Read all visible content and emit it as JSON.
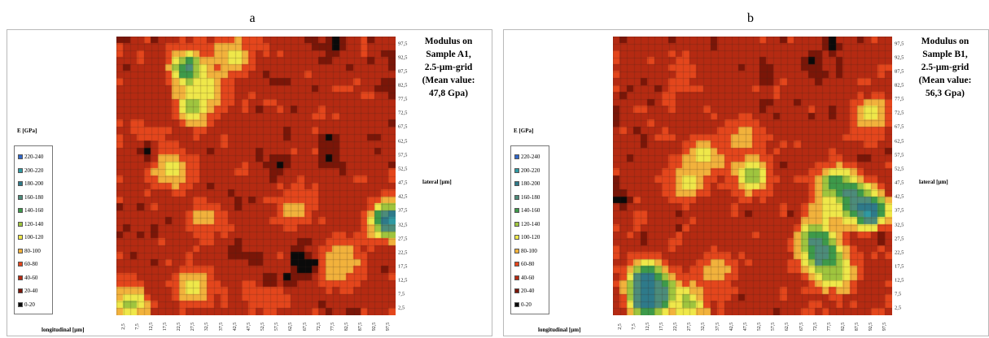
{
  "chart_data": [
    {
      "panel": "a",
      "type": "heatmap",
      "title_lines": [
        "Modulus on",
        "Sample A1,",
        "2.5-μm-grid",
        "(Mean value:",
        "47,8 Gpa)"
      ],
      "xlabel": "longitudinal [μm]",
      "ylabel": "lateral [μm]",
      "legend_title": "E [GPa]",
      "x_ticks": [
        "2,5",
        "7,5",
        "12,5",
        "17,5",
        "22,5",
        "27,5",
        "32,5",
        "37,5",
        "42,5",
        "47,5",
        "52,5",
        "57,5",
        "62,5",
        "67,5",
        "72,5",
        "77,5",
        "82,5",
        "87,5",
        "92,5",
        "97,5"
      ],
      "y_ticks": [
        "97,5",
        "92,5",
        "87,5",
        "82,5",
        "77,5",
        "72,5",
        "67,5",
        "62,5",
        "57,5",
        "52,5",
        "47,5",
        "42,5",
        "37,5",
        "32,5",
        "27,5",
        "22,5",
        "17,5",
        "12,5",
        "7,5",
        "2,5"
      ],
      "xlim": [
        0,
        100
      ],
      "ylim": [
        0,
        100
      ],
      "mean_value": "47,8 Gpa",
      "grid_step_um": 2.5,
      "hotspots": [
        {
          "x": 28,
          "y": 75,
          "level": 6
        },
        {
          "x": 26,
          "y": 88,
          "level": 8
        },
        {
          "x": 33,
          "y": 82,
          "level": 5
        },
        {
          "x": 42,
          "y": 93,
          "level": 5
        },
        {
          "x": 98,
          "y": 34,
          "level": 10
        },
        {
          "x": 27,
          "y": 10,
          "level": 5
        },
        {
          "x": 55,
          "y": 9,
          "level": 4
        },
        {
          "x": 78,
          "y": 17,
          "level": 5
        },
        {
          "x": 82,
          "y": 20,
          "level": 4
        },
        {
          "x": 64,
          "y": 38,
          "level": 4
        },
        {
          "x": 31,
          "y": 35,
          "level": 4
        },
        {
          "x": 11,
          "y": 64,
          "level": 3
        },
        {
          "x": 5,
          "y": 4,
          "level": 6
        },
        {
          "x": 19,
          "y": 52,
          "level": 5
        }
      ],
      "lows": [
        {
          "x": 65,
          "y": 20,
          "level": 0
        },
        {
          "x": 70,
          "y": 18,
          "level": 0
        },
        {
          "x": 68,
          "y": 16,
          "level": 0
        },
        {
          "x": 62,
          "y": 13,
          "level": 0
        },
        {
          "x": 11,
          "y": 59,
          "level": 0
        },
        {
          "x": 77,
          "y": 57,
          "level": 0
        },
        {
          "x": 77,
          "y": 63,
          "level": 0
        },
        {
          "x": 78,
          "y": 97,
          "level": 0
        },
        {
          "x": 60,
          "y": 55,
          "level": 0
        },
        {
          "x": 55,
          "y": 12,
          "level": 0
        }
      ]
    },
    {
      "panel": "b",
      "type": "heatmap",
      "title_lines": [
        "Modulus on",
        "Sample B1,",
        "2.5-μm-grid",
        "(Mean value:",
        "56,3 Gpa)"
      ],
      "xlabel": "longitudinal [μm]",
      "ylabel": "lateral [μm]",
      "legend_title": "E [GPa]",
      "x_ticks": [
        "2,5",
        "7,5",
        "12,5",
        "17,5",
        "22,5",
        "27,5",
        "32,5",
        "37,5",
        "42,5",
        "47,5",
        "52,5",
        "57,5",
        "62,5",
        "67,5",
        "72,5",
        "77,5",
        "82,5",
        "87,5",
        "92,5",
        "97,5"
      ],
      "y_ticks": [
        "97,5",
        "92,5",
        "87,5",
        "82,5",
        "77,5",
        "72,5",
        "67,5",
        "62,5",
        "57,5",
        "52,5",
        "47,5",
        "42,5",
        "37,5",
        "32,5",
        "27,5",
        "22,5",
        "17,5",
        "12,5",
        "7,5",
        "2,5"
      ],
      "xlim": [
        0,
        100
      ],
      "ylim": [
        0,
        100
      ],
      "mean_value": "56,3 Gpa",
      "grid_step_um": 2.5,
      "hotspots": [
        {
          "x": 12,
          "y": 12,
          "level": 10
        },
        {
          "x": 17,
          "y": 8,
          "level": 8
        },
        {
          "x": 12,
          "y": 5,
          "level": 9
        },
        {
          "x": 27,
          "y": 4,
          "level": 6
        },
        {
          "x": 85,
          "y": 42,
          "level": 9
        },
        {
          "x": 92,
          "y": 37,
          "level": 10
        },
        {
          "x": 80,
          "y": 46,
          "level": 8
        },
        {
          "x": 73,
          "y": 27,
          "level": 8
        },
        {
          "x": 76,
          "y": 20,
          "level": 9
        },
        {
          "x": 80,
          "y": 15,
          "level": 6
        },
        {
          "x": 50,
          "y": 50,
          "level": 6
        },
        {
          "x": 27,
          "y": 48,
          "level": 5
        },
        {
          "x": 33,
          "y": 57,
          "level": 5
        },
        {
          "x": 47,
          "y": 64,
          "level": 4
        },
        {
          "x": 93,
          "y": 72,
          "level": 5
        },
        {
          "x": 25,
          "y": 85,
          "level": 3
        },
        {
          "x": 78,
          "y": 38,
          "level": 5
        },
        {
          "x": 37,
          "y": 16,
          "level": 4
        }
      ],
      "lows": [
        {
          "x": 78,
          "y": 97,
          "level": 0
        },
        {
          "x": 72,
          "y": 92,
          "level": 0
        },
        {
          "x": 2,
          "y": 42,
          "level": 0
        },
        {
          "x": 97,
          "y": 28,
          "level": 1
        }
      ]
    }
  ],
  "legend": [
    {
      "label": "220-240",
      "color": "#2f66c8"
    },
    {
      "label": "200-220",
      "color": "#2f9aa3"
    },
    {
      "label": "180-200",
      "color": "#2e7a8a"
    },
    {
      "label": "160-180",
      "color": "#4c8c7a"
    },
    {
      "label": "140-160",
      "color": "#3d9a4a"
    },
    {
      "label": "120-140",
      "color": "#9fc53e"
    },
    {
      "label": "100-120",
      "color": "#efe84a"
    },
    {
      "label": "80-100",
      "color": "#f2b23c"
    },
    {
      "label": "60-80",
      "color": "#e4461c"
    },
    {
      "label": "40-60",
      "color": "#b52a12"
    },
    {
      "label": "20-40",
      "color": "#7a1608"
    },
    {
      "label": "0-20",
      "color": "#0a0a0a"
    }
  ],
  "scale_colors": [
    "#0a0a0a",
    "#7a1608",
    "#b52a12",
    "#e4461c",
    "#f2b23c",
    "#efe84a",
    "#9fc53e",
    "#3d9a4a",
    "#4c8c7a",
    "#2e7a8a",
    "#2f9aa3",
    "#2f66c8"
  ]
}
